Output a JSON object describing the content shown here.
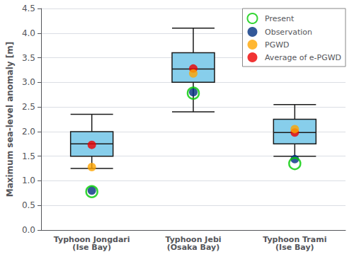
{
  "chart_data": {
    "type": "boxplot",
    "ylabel": "Maximum sea-level anomaly [m]",
    "categories": [
      "Typhoon Jongdari\n(Ise Bay)",
      "Typhoon Jebi\n(Osaka Bay)",
      "Typhoon Trami\n(Ise Bay)"
    ],
    "boxes": {
      "color": "#87CEEB",
      "whisker_low": [
        1.25,
        2.4,
        1.5
      ],
      "q1": [
        1.5,
        3.0,
        1.75
      ],
      "median": [
        1.75,
        3.27,
        1.98
      ],
      "q3": [
        2.0,
        3.6,
        2.25
      ],
      "whisker_high": [
        2.35,
        4.1,
        2.55
      ]
    },
    "series": [
      {
        "name": "Present",
        "type": "scatter",
        "marker": "open_circle",
        "color": "#00CC00",
        "values": [
          0.78,
          2.78,
          1.35
        ]
      },
      {
        "name": "Observation",
        "type": "scatter",
        "marker": "circle",
        "color": "#003080",
        "values": [
          0.8,
          2.8,
          1.44
        ]
      },
      {
        "name": "PGWD",
        "type": "scatter",
        "marker": "circle",
        "color": "#FFA500",
        "values": [
          1.28,
          3.18,
          2.05
        ]
      },
      {
        "name": "Average of e-PGWD",
        "type": "scatter",
        "marker": "circle",
        "color": "#EE0000",
        "values": [
          1.73,
          3.28,
          1.98
        ]
      }
    ],
    "ylim": [
      0,
      4.5
    ],
    "yticks": [
      {
        "value": 0,
        "label": "0.0"
      },
      0.5,
      {
        "value": 1.0,
        "label": "1.0"
      },
      1.5,
      {
        "value": 2.0,
        "label": "2.0"
      },
      2.5,
      {
        "value": 3.0,
        "label": "3.0"
      },
      3.5,
      {
        "value": 4.0,
        "label": "4.0"
      },
      4.5
    ],
    "grid": true,
    "legend": "upper right"
  }
}
